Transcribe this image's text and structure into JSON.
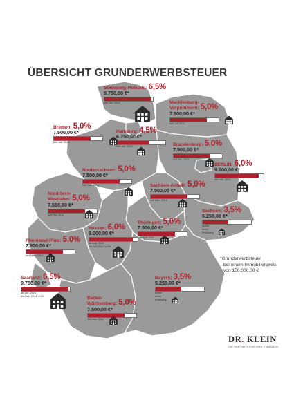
{
  "title": "ÜBERSICHT GRUNDERWERBSTEUER",
  "legend": {
    "line1": "*Grunderwerbsteuer",
    "line2": "bei einem Immobilienpreis",
    "line3": "von 150.000,00 €"
  },
  "brand": {
    "name_part1": "DR",
    "name_dot": ".",
    "name_part2": " KLEIN",
    "tagline": "DIE PARTNER FÜR IHRE FINANZEN"
  },
  "colors": {
    "accent": "#b0202a",
    "map_fill": "#9a9a9a",
    "map_border": "#ffffff",
    "house": "#2b2b2b"
  },
  "icon": "house-icon",
  "chart_data": {
    "type": "bar",
    "title": "ÜBERSICHT GRUNDERWERBSTEUER",
    "categories": [
      "Schleswig-Holstein",
      "Mecklenburg-Vorpommern",
      "Bremen",
      "Hamburg",
      "Brandenburg",
      "BERLIN",
      "Niedersachsen",
      "Sachsen-Anhalt",
      "Nordrhein-Westfalen",
      "Sachsen",
      "Thüringen",
      "Hessen",
      "Rheinland-Pfalz",
      "Saarland",
      "Bayern",
      "Baden-Württemberg"
    ],
    "rates": [
      6.5,
      5.0,
      5.0,
      4.5,
      5.0,
      6.0,
      5.0,
      5.0,
      5.0,
      3.5,
      5.0,
      6.0,
      5.0,
      6.5,
      3.5,
      5.0
    ],
    "values": [
      9750,
      7500,
      7500,
      6750,
      7500,
      9000,
      7500,
      7500,
      7500,
      5250,
      7500,
      9000,
      7500,
      9750,
      5250,
      7500
    ],
    "unit": "€",
    "legend": "*Grunderwerbsteuer bei einem Immobilienpreis von 150.000,00 €"
  },
  "states": [
    {
      "id": "sh",
      "name1": "Schleswig-Holstein:",
      "name2": "",
      "rate": "6,5%",
      "value": 9750,
      "price": "9.750,00 €*",
      "note1": "seit Jan. 2014",
      "note2": "",
      "note3": ""
    },
    {
      "id": "mv",
      "name1": "Mecklenburg-",
      "name2": "Vorpommern:",
      "rate": "5,0%",
      "value": 7500,
      "price": "7.500,00 €*",
      "note1": "seit Juli 2012",
      "note2": "",
      "note3": ""
    },
    {
      "id": "hb",
      "name1": "Bremen:",
      "name2": "",
      "rate": "5,0%",
      "value": 7500,
      "price": "7.500,00 €*",
      "note1": "seit Jan. 2014",
      "note2": "",
      "note3": ""
    },
    {
      "id": "hh",
      "name1": "Hamburg:",
      "name2": "",
      "rate": "4,5%",
      "value": 6750,
      "price": "6.750,00 €*",
      "note1": "seit Jan. 2009",
      "note2": "",
      "note3": ""
    },
    {
      "id": "bb",
      "name1": "Brandenburg:",
      "name2": "",
      "rate": "5,0%",
      "value": 7500,
      "price": "7.500,00 €*",
      "note1": "seit Jan. 2011",
      "note2": "",
      "note3": ""
    },
    {
      "id": "be",
      "name1": "BERLIN:",
      "name2": "",
      "rate": "6,0%",
      "value": 9000,
      "price": "9.000,00 €*",
      "note1": "seit Jan. 2014",
      "note2": "",
      "note3": ""
    },
    {
      "id": "ni",
      "name1": "Niedersachsen:",
      "name2": "",
      "rate": "5,0%",
      "value": 7500,
      "price": "7.500,00 €*",
      "note1": "seit Jan. 2014",
      "note2": "",
      "note3": ""
    },
    {
      "id": "st",
      "name1": "Sachsen-Anhalt:",
      "name2": "",
      "rate": "5,0%",
      "value": 7500,
      "price": "7.500,00 €*",
      "note1": "seit März 2012",
      "note2": "",
      "note3": ""
    },
    {
      "id": "nw",
      "name1": "Nordrhein-",
      "name2": "Westfalen:",
      "rate": "5,0%",
      "value": 7500,
      "price": "7.500,00 €*",
      "note1": "seit Okt. 2011",
      "note2": "",
      "note3": ""
    },
    {
      "id": "sn",
      "name1": "Sachsen:",
      "name2": "",
      "rate": "3,5%",
      "value": 5250,
      "price": "5.250,00 €*",
      "note1": "bisher",
      "note2": "keine",
      "note3": "Erhöhung"
    },
    {
      "id": "th",
      "name1": "Thüringen:",
      "name2": "",
      "rate": "5,0%",
      "value": 7500,
      "price": "7.500,00 €*",
      "note1": "seit April 2011",
      "note2": "",
      "note3": ""
    },
    {
      "id": "he",
      "name1": "Hessen:",
      "name2": "",
      "rate": "6,0%",
      "value": 9000,
      "price": "9.000,00 €*",
      "note1": "ab Aug. 2014",
      "note2": "bis Juli 2014: 5,0%",
      "note3": ""
    },
    {
      "id": "rp",
      "name1": "Rheinland-Pfalz:",
      "name2": "",
      "rate": "5,0%",
      "value": 7500,
      "price": "7.500,00 €*",
      "note1": "seit März 2012",
      "note2": "",
      "note3": ""
    },
    {
      "id": "sl",
      "name1": "Saarland:",
      "name2": "",
      "rate": "6,5%",
      "value": 9750,
      "price": "9.750,00 €*",
      "note1": "ab Jan. 2015",
      "note2": "bis Dez. 2014: 5,5%",
      "note3": ""
    },
    {
      "id": "by",
      "name1": "Bayern:",
      "name2": "",
      "rate": "3,5%",
      "value": 5250,
      "price": "5.250,00 €*",
      "note1": "bisher",
      "note2": "keine",
      "note3": "Erhöhung"
    },
    {
      "id": "bw",
      "name1": "Baden-",
      "name2": "Württemberg:",
      "rate": "5,0%",
      "value": 7500,
      "price": "7.500,00 €*",
      "note1": "seit Nov. 2011",
      "note2": "",
      "note3": ""
    }
  ]
}
